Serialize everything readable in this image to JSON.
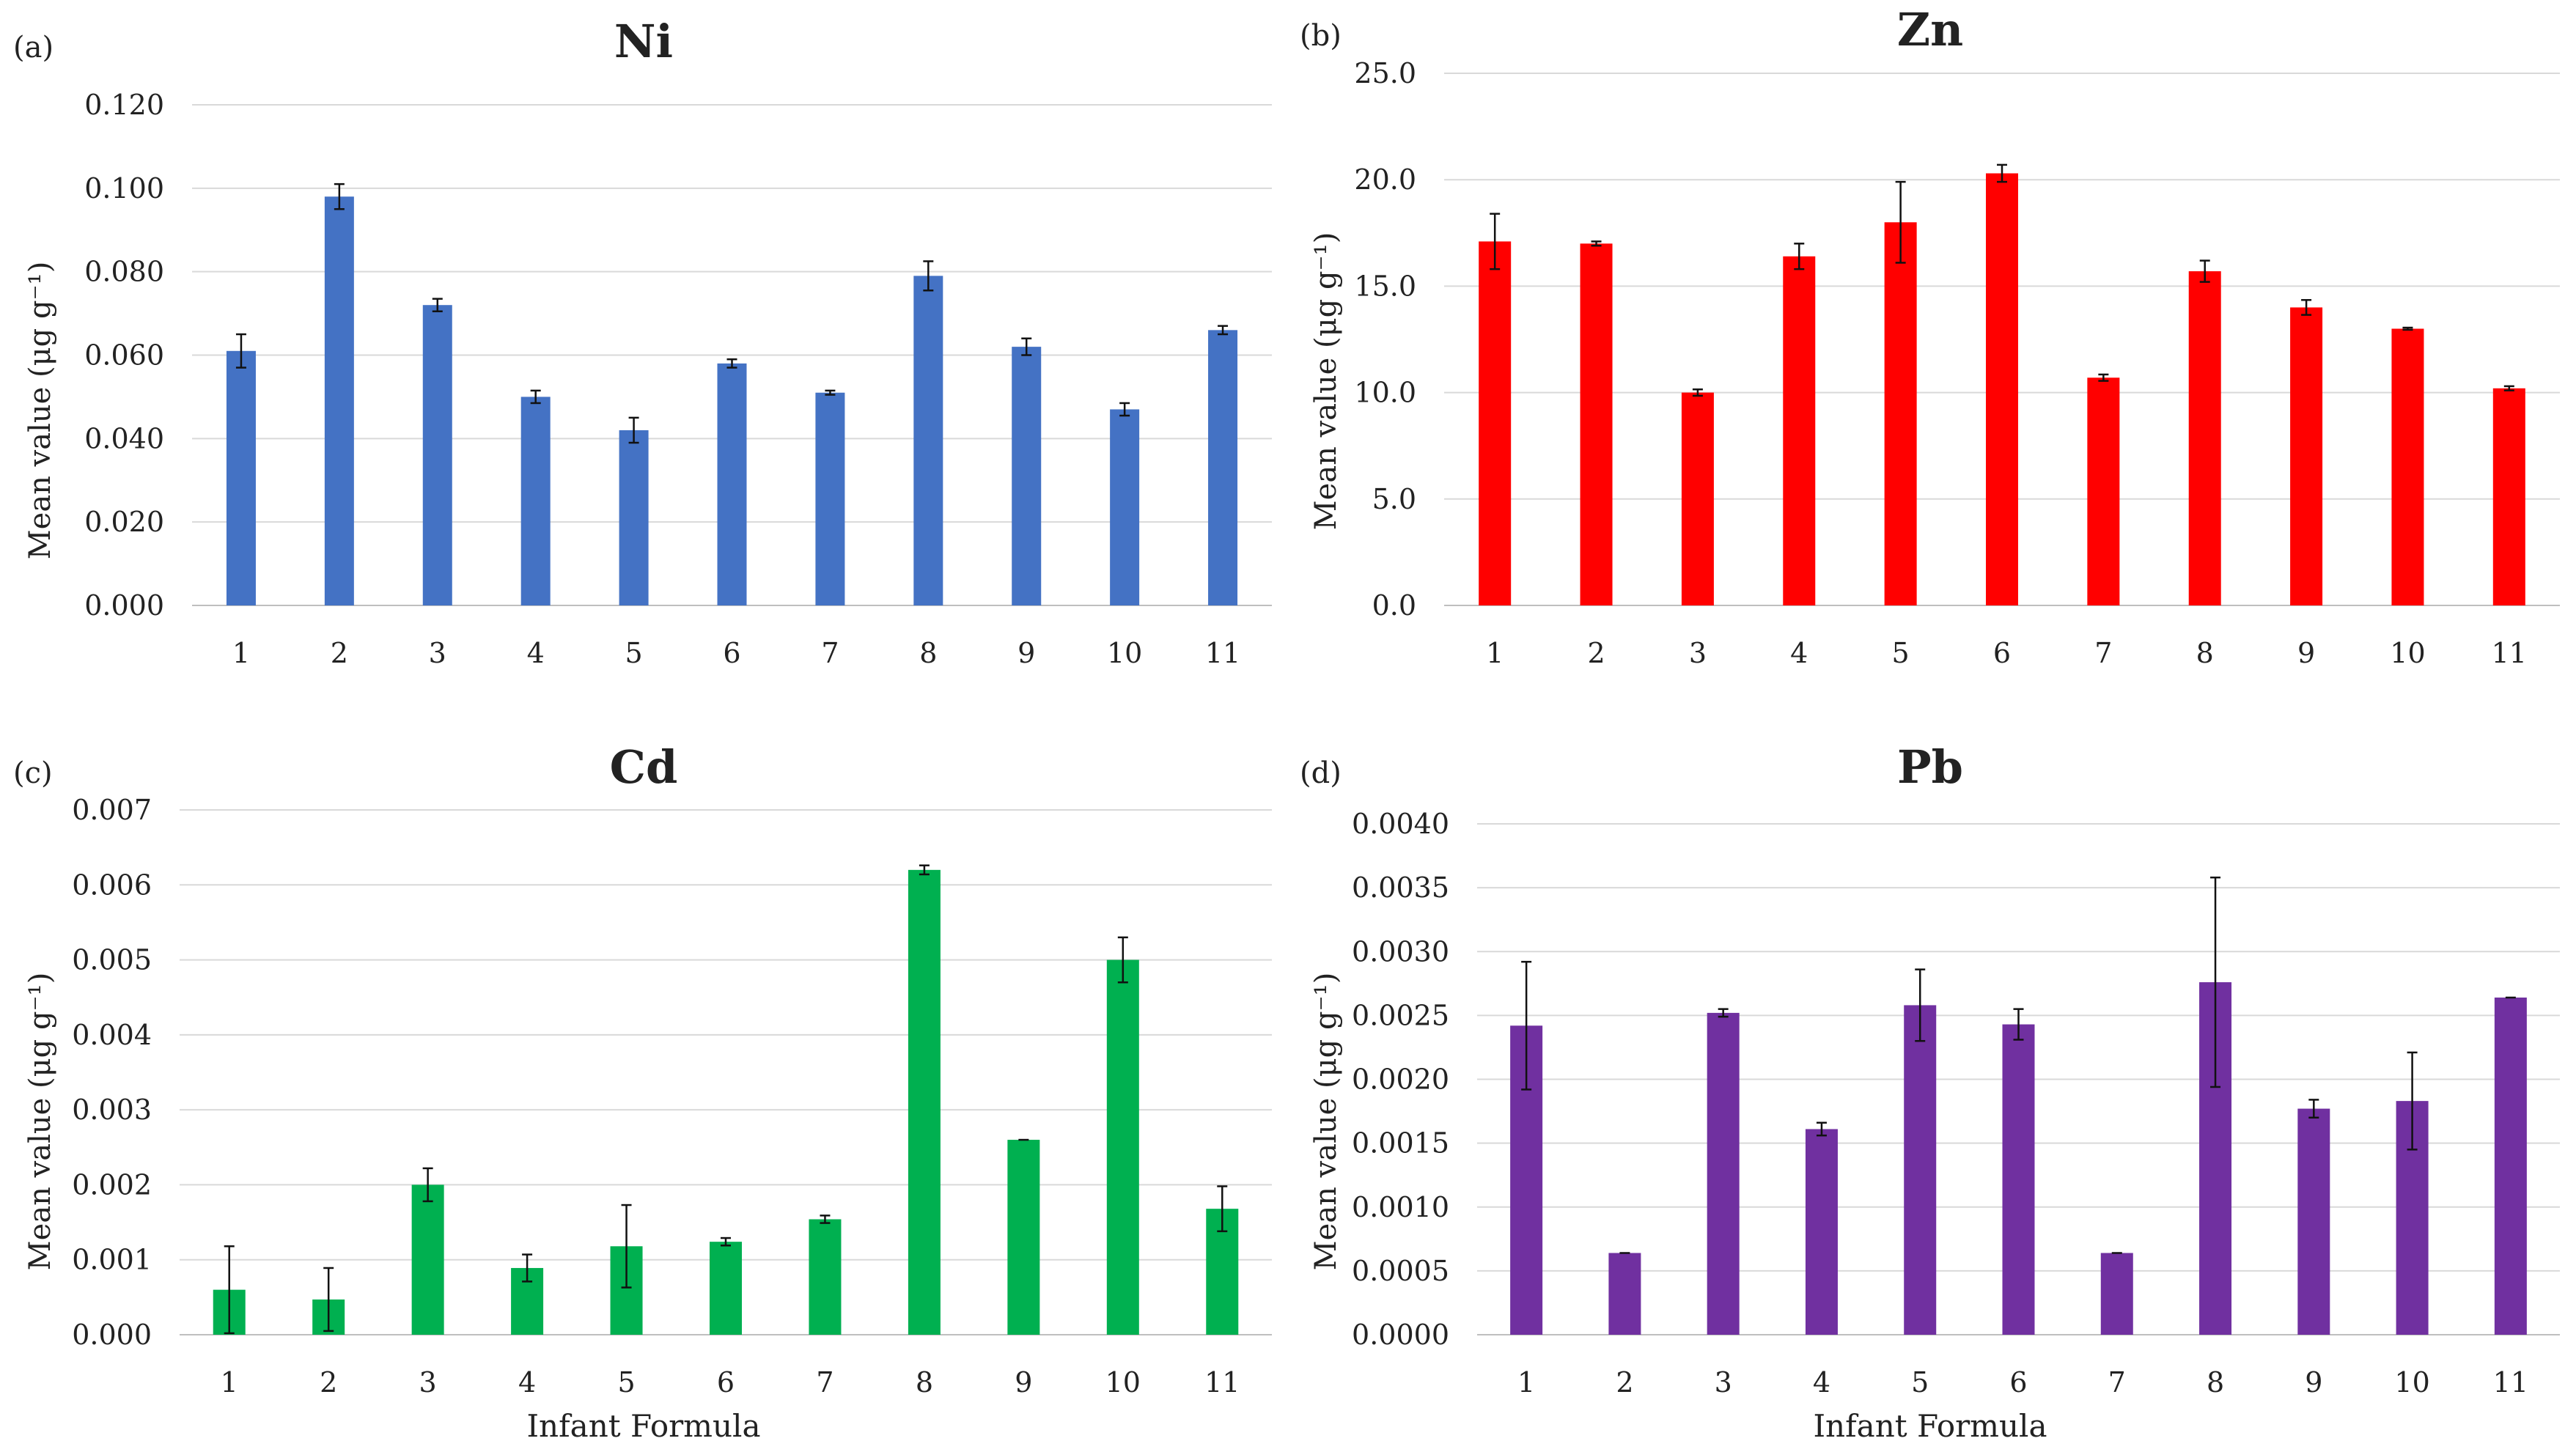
{
  "chart_data": [
    {
      "type": "bar",
      "panel": "(a)",
      "title": "Ni",
      "ylabel": "Mean value (μg g⁻¹)",
      "xlabel": "",
      "categories": [
        "1",
        "2",
        "3",
        "4",
        "5",
        "6",
        "7",
        "8",
        "9",
        "10",
        "11"
      ],
      "values": [
        0.061,
        0.098,
        0.072,
        0.05,
        0.042,
        0.058,
        0.051,
        0.079,
        0.062,
        0.047,
        0.066
      ],
      "errors": [
        0.004,
        0.003,
        0.0015,
        0.0015,
        0.003,
        0.001,
        0.0005,
        0.0035,
        0.002,
        0.0015,
        0.001
      ],
      "ylim": [
        0,
        0.12
      ],
      "yticks": [
        "0.000",
        "0.020",
        "0.040",
        "0.060",
        "0.080",
        "0.100",
        "0.120"
      ],
      "color": "#4472c4"
    },
    {
      "type": "bar",
      "panel": "(b)",
      "title": "Zn",
      "ylabel": "Mean value (μg g⁻¹)",
      "xlabel": "",
      "categories": [
        "1",
        "2",
        "3",
        "4",
        "5",
        "6",
        "7",
        "8",
        "9",
        "10",
        "11"
      ],
      "values": [
        17.1,
        17.0,
        10.0,
        16.4,
        18.0,
        20.3,
        10.7,
        15.7,
        14.0,
        13.0,
        10.2
      ],
      "errors": [
        1.3,
        0.1,
        0.15,
        0.6,
        1.9,
        0.4,
        0.15,
        0.5,
        0.35,
        0.05,
        0.1
      ],
      "ylim": [
        0,
        25
      ],
      "yticks": [
        "0.0",
        "5.0",
        "10.0",
        "15.0",
        "20.0",
        "25.0"
      ],
      "color": "#ff0000"
    },
    {
      "type": "bar",
      "panel": "(c)",
      "title": "Cd",
      "ylabel": "Mean value (μg g⁻¹)",
      "xlabel": "Infant Formula",
      "categories": [
        "1",
        "2",
        "3",
        "4",
        "5",
        "6",
        "7",
        "8",
        "9",
        "10",
        "11"
      ],
      "values": [
        0.0006,
        0.00047,
        0.002,
        0.00089,
        0.00118,
        0.00124,
        0.00154,
        0.0062,
        0.0026,
        0.005,
        0.00168
      ],
      "errors": [
        0.00058,
        0.00042,
        0.00022,
        0.00018,
        0.00055,
        5e-05,
        5e-05,
        6e-05,
        0.0,
        0.0003,
        0.0003
      ],
      "ylim": [
        0,
        0.007
      ],
      "yticks": [
        "0.000",
        "0.001",
        "0.002",
        "0.003",
        "0.004",
        "0.005",
        "0.006",
        "0.007"
      ],
      "color": "#00b050"
    },
    {
      "type": "bar",
      "panel": "(d)",
      "title": "Pb",
      "ylabel": "Mean value (μg g⁻¹)",
      "xlabel": "Infant Formula",
      "categories": [
        "1",
        "2",
        "3",
        "4",
        "5",
        "6",
        "7",
        "8",
        "9",
        "10",
        "11"
      ],
      "values": [
        0.00242,
        0.00064,
        0.00252,
        0.00161,
        0.00258,
        0.00243,
        0.00064,
        0.00276,
        0.00177,
        0.00183,
        0.00264
      ],
      "errors": [
        0.0005,
        0.0,
        3e-05,
        5e-05,
        0.00028,
        0.00012,
        0.0,
        0.00082,
        7e-05,
        0.00038,
        0.0
      ],
      "ylim": [
        0,
        0.004
      ],
      "yticks": [
        "0.0000",
        "0.0005",
        "0.0010",
        "0.0015",
        "0.0020",
        "0.0025",
        "0.0030",
        "0.0035",
        "0.0040"
      ],
      "color": "#7030a0"
    }
  ]
}
